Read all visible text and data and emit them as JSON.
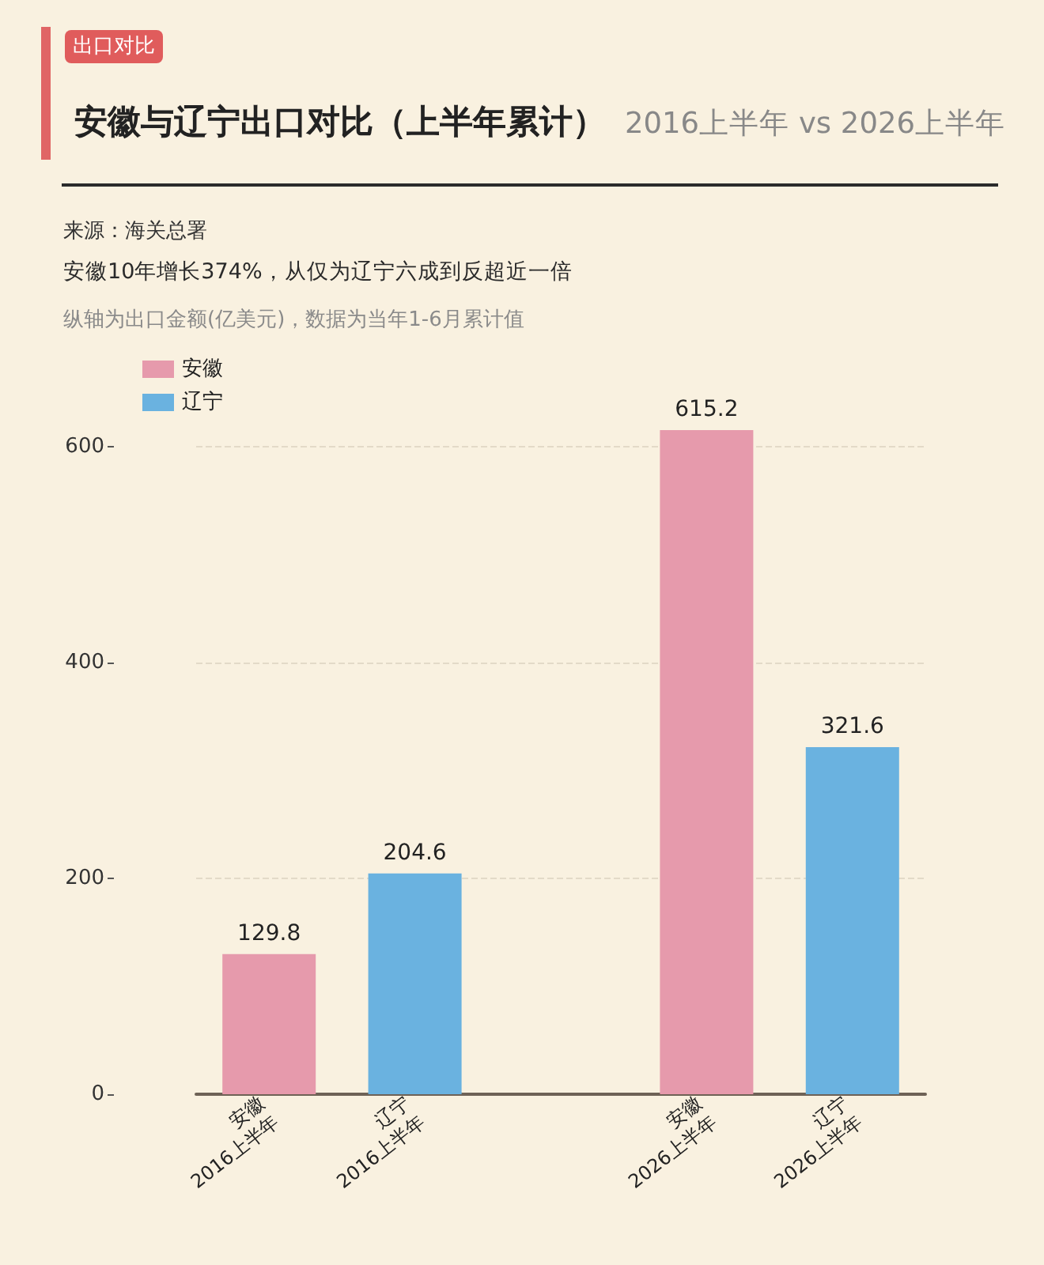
{
  "chart_data": {
    "type": "bar",
    "title": "安徽与辽宁出口对比（上半年累计）",
    "subtitle": "2016上半年 vs 2026上半年",
    "annotations": [
      "出口对比",
      "来源：海关总署",
      "安徽10年增长374%，从仅为辽宁六成到反超近一倍",
      "纵轴为出口金额(亿美元)，数据为当年1-6月累计值"
    ],
    "categories": [
      "安徽\n2016上半年",
      "辽宁\n2016上半年",
      null,
      "安徽\n2026上半年",
      "辽宁\n2026上半年"
    ],
    "series": [
      {
        "name": "安徽",
        "color": "#e69aac",
        "values": [
          129.8,
          null,
          null,
          615.2,
          null
        ]
      },
      {
        "name": "辽宁",
        "color": "#6ab2e0",
        "values": [
          null,
          204.6,
          null,
          null,
          321.6
        ]
      }
    ],
    "ylim": [
      0,
      615.2
    ],
    "yticks": [
      0,
      200,
      400,
      600
    ],
    "grid": "y",
    "legend": "top left",
    "data_labels": true
  }
}
